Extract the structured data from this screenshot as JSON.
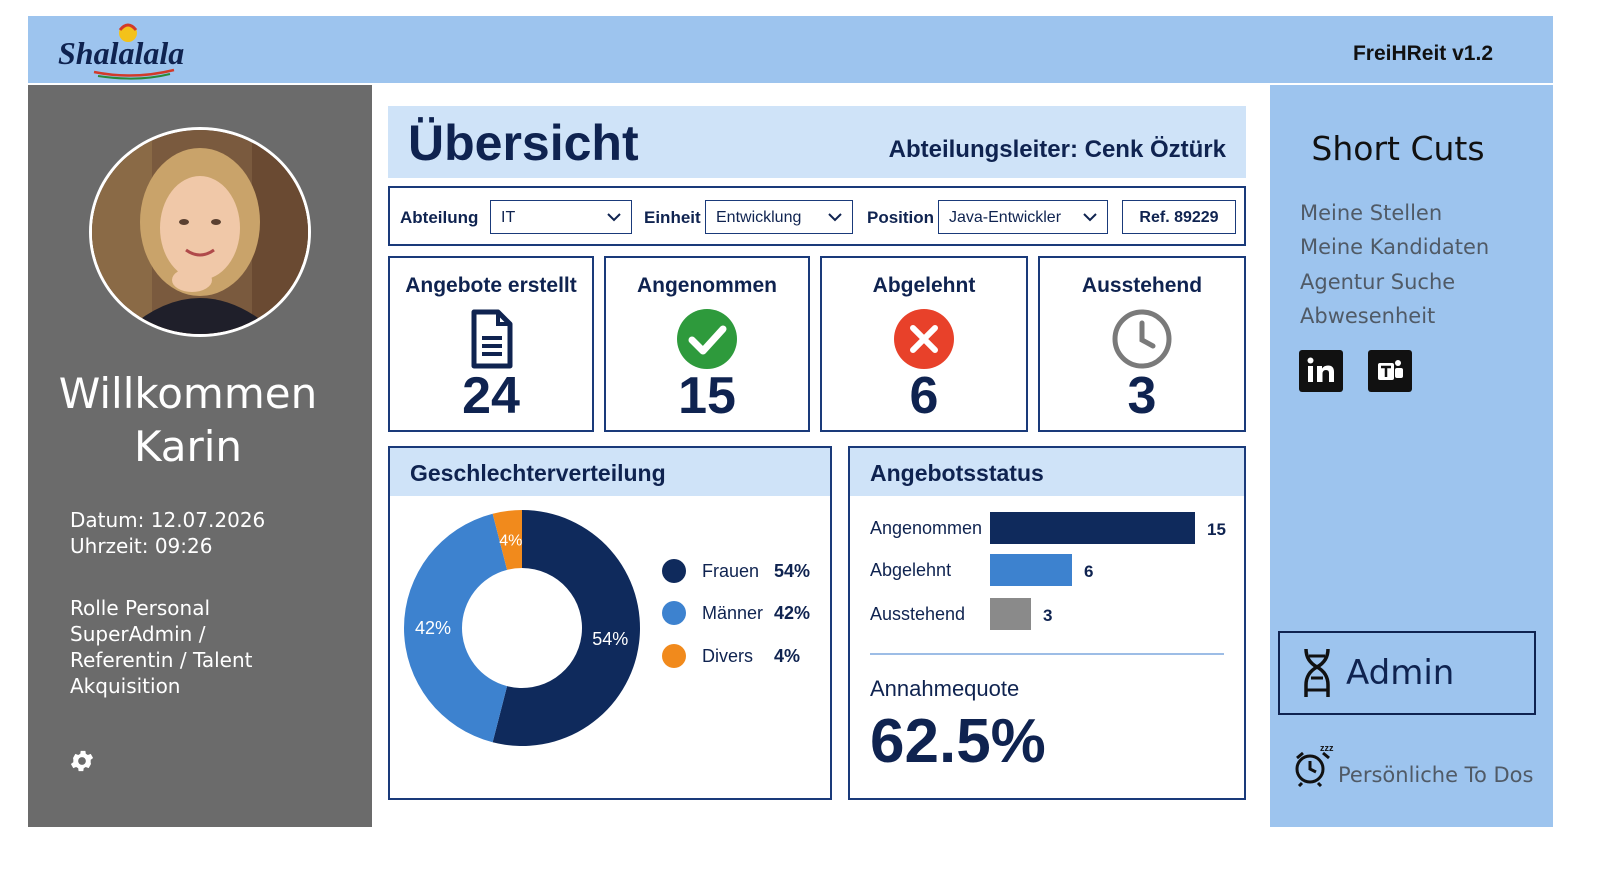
{
  "topbar": {
    "logo_text": "Shalalala",
    "app_version": "FreiHReit v1.2"
  },
  "sidebar": {
    "welcome_line1": "Willkommen",
    "welcome_line2": "Karin",
    "date_line": "Datum: 12.07.2026",
    "time_line": "Uhrzeit: 09:26",
    "role_text": "Rolle Personal SuperAdmin / Referentin / Talent Akquisition"
  },
  "header": {
    "title": "Übersicht",
    "dept_head": "Abteilungsleiter: Cenk Öztürk"
  },
  "filters": {
    "abteilung_label": "Abteilung",
    "abteilung_value": "IT",
    "einheit_label": "Einheit",
    "einheit_value": "Entwicklung",
    "position_label": "Position",
    "position_value": "Java-Entwickler",
    "ref": "Ref. 89229"
  },
  "kpis": [
    {
      "title": "Angebote erstellt",
      "value": "24",
      "icon": "document-icon"
    },
    {
      "title": "Angenommen",
      "value": "15",
      "icon": "check-circle-icon"
    },
    {
      "title": "Abgelehnt",
      "value": "6",
      "icon": "x-circle-icon"
    },
    {
      "title": "Ausstehend",
      "value": "3",
      "icon": "clock-icon"
    }
  ],
  "gender_panel": {
    "title": "Geschlechterverteilung",
    "legend": [
      {
        "name": "Frauen",
        "value": "54%",
        "color": "#0f2a5c"
      },
      {
        "name": "Männer",
        "value": "42%",
        "color": "#3d82cf"
      },
      {
        "name": "Divers",
        "value": "4%",
        "color": "#f18a1c"
      }
    ]
  },
  "offer_panel": {
    "title": "Angebotsstatus",
    "rate_label": "Annahmequote",
    "rate_value": "62.5%"
  },
  "chart_data": [
    {
      "type": "pie",
      "title": "Geschlechterverteilung",
      "categories": [
        "Frauen",
        "Männer",
        "Divers"
      ],
      "values": [
        54,
        42,
        4
      ],
      "labels": [
        "54%",
        "42%",
        "4%"
      ],
      "colors": [
        "#0f2a5c",
        "#3d82cf",
        "#f18a1c"
      ]
    },
    {
      "type": "bar",
      "title": "Angebotsstatus",
      "categories": [
        "Angenommen",
        "Abgelehnt",
        "Ausstehend"
      ],
      "values": [
        15,
        6,
        3
      ],
      "colors": [
        "#0f2a5c",
        "#3d82cf",
        "#8a8a8a"
      ],
      "xlim": [
        0,
        15
      ]
    }
  ],
  "shortcuts": {
    "title": "Short Cuts",
    "links": [
      "Meine Stellen",
      "Meine Kandidaten",
      "Agentur Suche",
      "Abwesenheit"
    ],
    "social": [
      "linkedin-icon",
      "teams-icon"
    ],
    "admin_label": "Admin",
    "todo_label": "Persönliche To Dos"
  }
}
